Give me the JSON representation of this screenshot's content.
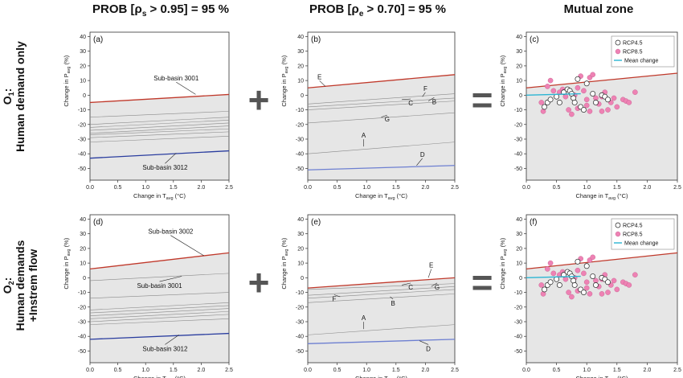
{
  "column_titles": [
    {
      "main": "PROB [ρ",
      "sub": "s",
      "rest": " > 0.95] = 95 %"
    },
    {
      "main": "PROB [ρ",
      "sub": "e",
      "rest": " > 0.70] = 95 %"
    },
    {
      "main": "Mutual zone",
      "sub": "",
      "rest": ""
    }
  ],
  "row_titles": [
    {
      "line1": "O",
      "line1_sub": "1",
      "line1_rest": ":",
      "line2": "Human demand only"
    },
    {
      "line1": "O",
      "line1_sub": "2",
      "line1_rest": ":",
      "line2": "Human demands",
      "line3": "+Instrem flow"
    }
  ],
  "operators": {
    "plus": "+",
    "equals": "="
  },
  "axes": {
    "xlabel_main": "Change in T",
    "xlabel_sub": "avg",
    "xlabel_rest": " (°C)",
    "ylabel_main": "Change in P",
    "ylabel_sub": "avg",
    "ylabel_rest": " (%)",
    "xlim": [
      0,
      2.5
    ],
    "ylim": [
      -58,
      43
    ],
    "xticks": [
      "0.0",
      "0.5",
      "1.0",
      "1.5",
      "2.0",
      "2.5"
    ],
    "yticks": [
      "40",
      "30",
      "20",
      "10",
      "0",
      "-10",
      "-20",
      "-30",
      "-40",
      "-50"
    ]
  },
  "legend": {
    "rcp45": "RCP4.5",
    "rcp85": "RCP8.5",
    "mean": "Mean change"
  },
  "colors": {
    "upper": "#c0392b",
    "lower": "#2a3d9f",
    "lower_light": "#6d7fd1",
    "gray": "#8a8a8a",
    "fill": "#e6e6e6",
    "mean": "#2bb5d3",
    "rcp85": "#ee82b4"
  },
  "chart_data": [
    {
      "type": "line",
      "panel": "(a)",
      "x": [
        0,
        2.5
      ],
      "series": [
        {
          "name": "Sub-basin 3001",
          "role": "upper",
          "values": [
            -5,
            0.5
          ]
        },
        {
          "name": "",
          "role": "gray",
          "values": [
            -15,
            -11
          ]
        },
        {
          "name": "",
          "role": "gray",
          "values": [
            -20,
            -15
          ]
        },
        {
          "name": "",
          "role": "gray",
          "values": [
            -22,
            -17
          ]
        },
        {
          "name": "",
          "role": "gray",
          "values": [
            -24,
            -19
          ]
        },
        {
          "name": "",
          "role": "gray",
          "values": [
            -26,
            -21
          ]
        },
        {
          "name": "",
          "role": "gray",
          "values": [
            -27,
            -23
          ]
        },
        {
          "name": "",
          "role": "gray",
          "values": [
            -29,
            -25
          ]
        },
        {
          "name": "",
          "role": "gray",
          "values": [
            -32,
            -28
          ]
        },
        {
          "name": "Sub-basin 3012",
          "role": "lower",
          "values": [
            -43,
            -38
          ]
        }
      ],
      "labels": [
        {
          "text": "Sub-basin 3001",
          "x": 1.55,
          "y": 10,
          "px": 1.9,
          "py": 0.5
        },
        {
          "text": "Sub-basin 3012",
          "x": 1.35,
          "y": -51,
          "px": 1.55,
          "py": -39.5
        }
      ]
    },
    {
      "type": "line",
      "panel": "(b)",
      "x": [
        0,
        2.5
      ],
      "series": [
        {
          "name": "E",
          "role": "upper",
          "values": [
            5,
            14
          ]
        },
        {
          "name": "F",
          "role": "gray",
          "values": [
            -6,
            1
          ]
        },
        {
          "name": "C",
          "role": "gray",
          "values": [
            -8,
            -2
          ]
        },
        {
          "name": "B",
          "role": "gray",
          "values": [
            -10,
            -4
          ]
        },
        {
          "name": "G",
          "role": "gray",
          "values": [
            -19,
            -12
          ]
        },
        {
          "name": "A",
          "role": "gray",
          "values": [
            -40,
            -32
          ]
        },
        {
          "name": "D",
          "role": "lower_light",
          "values": [
            -51,
            -48
          ]
        }
      ],
      "labels": [
        {
          "text": "E",
          "x": 0.2,
          "y": 11,
          "px": 0.3,
          "py": 6
        },
        {
          "text": "F",
          "x": 2.0,
          "y": 3,
          "px": 1.95,
          "py": -1
        },
        {
          "text": "C",
          "x": 1.75,
          "y": -7,
          "px": 1.6,
          "py": -3
        },
        {
          "text": "B",
          "x": 2.15,
          "y": -6,
          "px": 2.05,
          "py": -4
        },
        {
          "text": "G",
          "x": 1.35,
          "y": -18,
          "px": 1.25,
          "py": -15
        },
        {
          "text": "A",
          "x": 0.95,
          "y": -29,
          "px": 0.95,
          "py": -35
        },
        {
          "text": "D",
          "x": 1.95,
          "y": -42,
          "px": 1.85,
          "py": -48
        }
      ]
    },
    {
      "type": "scatter",
      "panel": "(c)",
      "x": [
        0,
        2.5
      ],
      "series": [
        {
          "name": "",
          "role": "upper",
          "values": [
            5,
            15
          ]
        },
        {
          "name": "RCP4.5",
          "role": "rcp45",
          "points": [
            [
              0.3,
              -8
            ],
            [
              0.35,
              -5
            ],
            [
              0.4,
              -3
            ],
            [
              0.5,
              -1
            ],
            [
              0.55,
              -5
            ],
            [
              0.62,
              2
            ],
            [
              0.68,
              4
            ],
            [
              0.72,
              3
            ],
            [
              0.75,
              1
            ],
            [
              0.78,
              -2
            ],
            [
              0.8,
              -5
            ],
            [
              0.85,
              11
            ],
            [
              0.9,
              -8
            ],
            [
              0.95,
              -10
            ],
            [
              1.0,
              8
            ],
            [
              1.1,
              1
            ],
            [
              1.15,
              -5
            ],
            [
              1.25,
              0
            ],
            [
              1.3,
              -1
            ],
            [
              1.35,
              -3
            ]
          ]
        },
        {
          "name": "RCP8.5",
          "role": "rcp85",
          "points": [
            [
              0.25,
              -5
            ],
            [
              0.28,
              -11
            ],
            [
              0.35,
              6
            ],
            [
              0.4,
              10
            ],
            [
              0.45,
              3
            ],
            [
              0.55,
              2
            ],
            [
              0.6,
              4
            ],
            [
              0.65,
              -1
            ],
            [
              0.7,
              -10
            ],
            [
              0.75,
              -13
            ],
            [
              0.8,
              0
            ],
            [
              0.85,
              5
            ],
            [
              0.9,
              13
            ],
            [
              0.95,
              3
            ],
            [
              1.0,
              -3
            ],
            [
              1.05,
              12
            ],
            [
              1.1,
              14
            ],
            [
              1.15,
              -2
            ],
            [
              1.2,
              -6
            ],
            [
              1.25,
              -1
            ],
            [
              1.3,
              2
            ],
            [
              1.35,
              -10
            ],
            [
              1.4,
              -5
            ],
            [
              1.45,
              -2
            ],
            [
              1.5,
              -8
            ],
            [
              1.6,
              -3
            ],
            [
              1.65,
              -4
            ],
            [
              1.7,
              -5
            ],
            [
              1.8,
              2
            ],
            [
              0.85,
              -9
            ],
            [
              1.05,
              -11
            ],
            [
              1.25,
              -11
            ],
            [
              1.0,
              -7
            ]
          ]
        },
        {
          "name": "Mean change",
          "role": "mean",
          "x": [
            0.0,
            0.9
          ],
          "values": [
            0,
            1
          ]
        }
      ]
    },
    {
      "type": "line",
      "panel": "(d)",
      "x": [
        0,
        2.5
      ],
      "series": [
        {
          "name": "Sub-basin 3002",
          "role": "upper",
          "values": [
            6,
            17
          ]
        },
        {
          "name": "Sub-basin 3001",
          "role": "gray",
          "values": [
            -2,
            3
          ]
        },
        {
          "name": "",
          "role": "gray",
          "values": [
            -14,
            -10
          ]
        },
        {
          "name": "",
          "role": "gray",
          "values": [
            -22,
            -17
          ]
        },
        {
          "name": "",
          "role": "gray",
          "values": [
            -24,
            -19
          ]
        },
        {
          "name": "",
          "role": "gray",
          "values": [
            -26,
            -21
          ]
        },
        {
          "name": "",
          "role": "gray",
          "values": [
            -28,
            -23
          ]
        },
        {
          "name": "",
          "role": "gray",
          "values": [
            -30,
            -25
          ]
        },
        {
          "name": "",
          "role": "gray",
          "values": [
            -32,
            -28
          ]
        },
        {
          "name": "Sub-basin 3012",
          "role": "lower",
          "values": [
            -42,
            -38
          ]
        }
      ],
      "labels": [
        {
          "text": "Sub-basin 3002",
          "x": 1.45,
          "y": 30,
          "px": 2.05,
          "py": 15
        },
        {
          "text": "Sub-basin 3001",
          "x": 1.25,
          "y": -7,
          "px": 1.65,
          "py": 1
        },
        {
          "text": "Sub-basin 3012",
          "x": 1.35,
          "y": -50,
          "px": 1.6,
          "py": -39
        }
      ]
    },
    {
      "type": "line",
      "panel": "(e)",
      "x": [
        0,
        2.5
      ],
      "series": [
        {
          "name": "E",
          "role": "upper",
          "values": [
            -7,
            0
          ]
        },
        {
          "name": "C",
          "role": "gray",
          "values": [
            -8,
            -4
          ]
        },
        {
          "name": "G",
          "role": "gray",
          "values": [
            -12,
            -6
          ]
        },
        {
          "name": "B",
          "role": "gray",
          "values": [
            -17,
            -11
          ]
        },
        {
          "name": "F",
          "role": "gray",
          "values": [
            -14,
            -8
          ]
        },
        {
          "name": "A",
          "role": "gray",
          "values": [
            -39,
            -32
          ]
        },
        {
          "name": "D",
          "role": "lower_light",
          "values": [
            -45,
            -42
          ]
        }
      ],
      "labels": [
        {
          "text": "E",
          "x": 2.1,
          "y": 7,
          "px": 2.05,
          "py": 0
        },
        {
          "text": "C",
          "x": 1.75,
          "y": -8,
          "px": 1.6,
          "py": -5
        },
        {
          "text": "G",
          "x": 2.2,
          "y": -8,
          "px": 2.1,
          "py": -6
        },
        {
          "text": "B",
          "x": 1.45,
          "y": -19,
          "px": 1.4,
          "py": -13
        },
        {
          "text": "F",
          "x": 0.45,
          "y": -16,
          "px": 0.55,
          "py": -13
        },
        {
          "text": "A",
          "x": 0.95,
          "y": -29,
          "px": 0.95,
          "py": -35
        },
        {
          "text": "D",
          "x": 2.05,
          "y": -50,
          "px": 1.9,
          "py": -43
        }
      ]
    },
    {
      "type": "scatter",
      "panel": "(f)",
      "x": [
        0,
        2.5
      ],
      "series": [
        {
          "name": "",
          "role": "upper",
          "values": [
            6,
            17
          ]
        },
        {
          "name": "RCP4.5",
          "role": "rcp45",
          "points": [
            [
              0.3,
              -8
            ],
            [
              0.35,
              -5
            ],
            [
              0.4,
              -3
            ],
            [
              0.5,
              -1
            ],
            [
              0.55,
              -5
            ],
            [
              0.62,
              2
            ],
            [
              0.68,
              4
            ],
            [
              0.72,
              3
            ],
            [
              0.75,
              1
            ],
            [
              0.78,
              -2
            ],
            [
              0.8,
              -5
            ],
            [
              0.85,
              11
            ],
            [
              0.9,
              -8
            ],
            [
              0.95,
              -10
            ],
            [
              1.0,
              8
            ],
            [
              1.1,
              1
            ],
            [
              1.15,
              -5
            ],
            [
              1.25,
              0
            ],
            [
              1.3,
              -1
            ],
            [
              1.35,
              -3
            ]
          ]
        },
        {
          "name": "RCP8.5",
          "role": "rcp85",
          "points": [
            [
              0.25,
              -5
            ],
            [
              0.28,
              -11
            ],
            [
              0.35,
              6
            ],
            [
              0.4,
              10
            ],
            [
              0.45,
              3
            ],
            [
              0.55,
              2
            ],
            [
              0.6,
              4
            ],
            [
              0.65,
              -1
            ],
            [
              0.7,
              -10
            ],
            [
              0.75,
              -13
            ],
            [
              0.8,
              0
            ],
            [
              0.85,
              5
            ],
            [
              0.9,
              13
            ],
            [
              0.95,
              3
            ],
            [
              1.0,
              -3
            ],
            [
              1.05,
              12
            ],
            [
              1.1,
              14
            ],
            [
              1.15,
              -2
            ],
            [
              1.2,
              -6
            ],
            [
              1.25,
              -1
            ],
            [
              1.3,
              2
            ],
            [
              1.35,
              -10
            ],
            [
              1.4,
              -5
            ],
            [
              1.45,
              -2
            ],
            [
              1.5,
              -8
            ],
            [
              1.6,
              -3
            ],
            [
              1.65,
              -4
            ],
            [
              1.7,
              -5
            ],
            [
              1.8,
              2
            ],
            [
              0.85,
              -9
            ],
            [
              1.05,
              -11
            ],
            [
              1.25,
              -11
            ],
            [
              1.0,
              -7
            ]
          ]
        },
        {
          "name": "Mean change",
          "role": "mean",
          "x": [
            0.0,
            0.9
          ],
          "values": [
            0,
            1
          ]
        }
      ]
    }
  ]
}
